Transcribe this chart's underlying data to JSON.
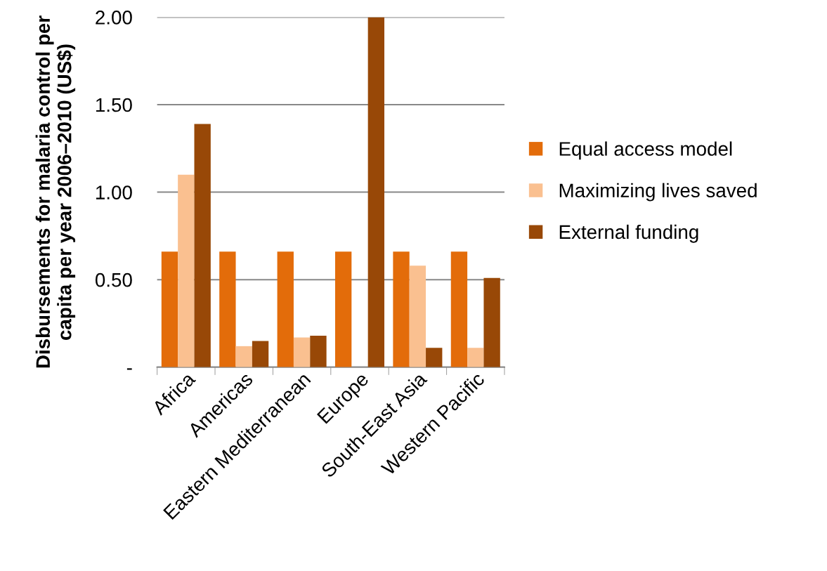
{
  "chart_data": {
    "type": "bar",
    "ylabel": "Disbursements for malaria control per capita per year 2006–2010 (US$)",
    "categories": [
      "Africa",
      "Americas",
      "Eastern Mediterranean",
      "Europe",
      "South-East Asia",
      "Western Pacific"
    ],
    "series": [
      {
        "name": "Equal access model",
        "color": "#e36c0a",
        "values": [
          0.66,
          0.66,
          0.66,
          0.66,
          0.66,
          0.66
        ]
      },
      {
        "name": "Maximizing lives saved",
        "color": "#fac090",
        "values": [
          1.1,
          0.12,
          0.17,
          null,
          0.58,
          0.11
        ]
      },
      {
        "name": "External funding",
        "color": "#984807",
        "values": [
          1.39,
          0.15,
          0.18,
          2.0,
          0.11,
          0.51
        ]
      }
    ],
    "ylim": [
      0,
      2.0
    ],
    "yticks": [
      {
        "value": 0,
        "label": "-"
      },
      {
        "value": 0.5,
        "label": "0.50"
      },
      {
        "value": 1.0,
        "label": "1.00"
      },
      {
        "value": 1.5,
        "label": "1.50"
      },
      {
        "value": 2.0,
        "label": "2.00"
      }
    ],
    "grid": "y",
    "legend": "right"
  }
}
